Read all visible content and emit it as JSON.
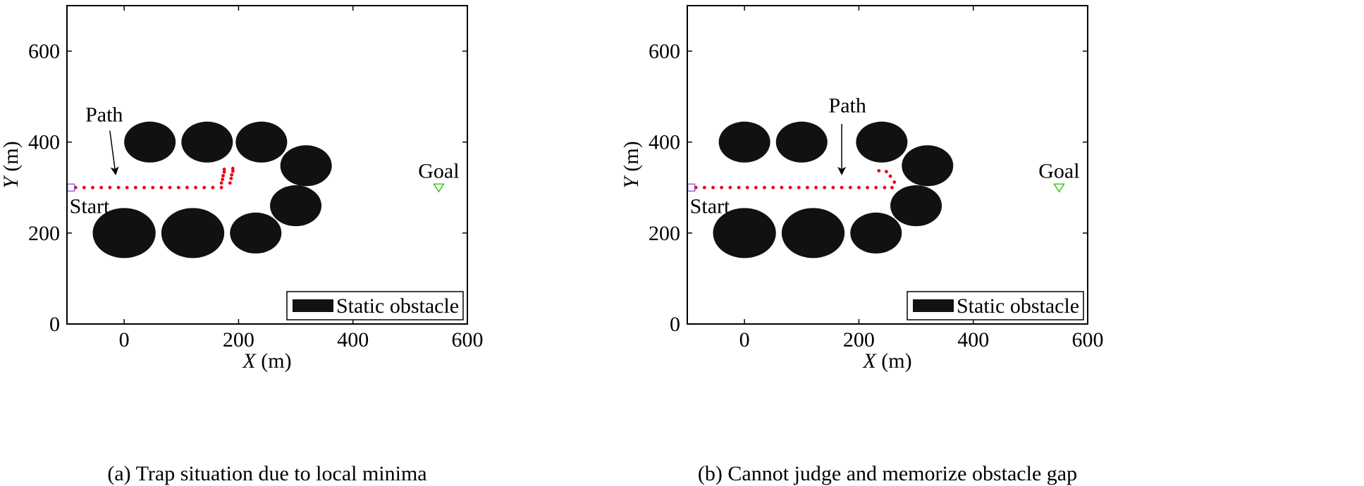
{
  "chart_data": [
    {
      "type": "scatter",
      "caption": "(a) Trap situation due to local minima",
      "xlabel_var": "X",
      "xlabel_unit": " (m)",
      "ylabel_var": "Y",
      "ylabel_unit": " (m)",
      "xlim": [
        -100,
        600
      ],
      "ylim": [
        0,
        700
      ],
      "xticks": [
        0,
        200,
        400,
        600
      ],
      "yticks": [
        0,
        200,
        400,
        600
      ],
      "colors": {
        "path": "#e8000b",
        "start": "#8a4fd8",
        "goal": "#35c20f",
        "obstacle": "#111111"
      },
      "obstacles": [
        {
          "cx": 45,
          "cy": 400,
          "rx": 45,
          "ry": 45
        },
        {
          "cx": 145,
          "cy": 400,
          "rx": 45,
          "ry": 45
        },
        {
          "cx": 240,
          "cy": 400,
          "rx": 45,
          "ry": 45
        },
        {
          "cx": 318,
          "cy": 348,
          "rx": 45,
          "ry": 45
        },
        {
          "cx": 300,
          "cy": 260,
          "rx": 45,
          "ry": 45
        },
        {
          "cx": 0,
          "cy": 200,
          "rx": 55,
          "ry": 55
        },
        {
          "cx": 120,
          "cy": 200,
          "rx": 55,
          "ry": 55
        },
        {
          "cx": 230,
          "cy": 200,
          "rx": 45,
          "ry": 45
        }
      ],
      "path": [
        [
          -85,
          300
        ],
        [
          -70,
          300
        ],
        [
          -55,
          300
        ],
        [
          -40,
          300
        ],
        [
          -25,
          300
        ],
        [
          -10,
          300
        ],
        [
          5,
          300
        ],
        [
          20,
          300
        ],
        [
          35,
          300
        ],
        [
          50,
          300
        ],
        [
          65,
          300
        ],
        [
          80,
          300
        ],
        [
          95,
          300
        ],
        [
          110,
          300
        ],
        [
          125,
          300
        ],
        [
          140,
          300
        ],
        [
          155,
          300
        ],
        [
          170,
          300
        ],
        [
          170,
          310
        ],
        [
          172,
          318
        ],
        [
          173,
          326
        ],
        [
          175,
          334
        ],
        [
          175,
          340
        ],
        [
          185,
          310
        ],
        [
          187,
          320
        ],
        [
          188,
          328
        ],
        [
          190,
          336
        ],
        [
          190,
          342
        ]
      ],
      "start": {
        "x": -93,
        "y": 300,
        "label": "Start"
      },
      "goal": {
        "x": 550,
        "y": 300,
        "label": "Goal"
      },
      "annotation": {
        "text": "Path",
        "label_at": [
          -35,
          445
        ],
        "arrow_from": [
          -25,
          425
        ],
        "arrow_to": [
          -15,
          330
        ]
      },
      "legend": {
        "label": "Static obstacle",
        "position": "bottom-right"
      }
    },
    {
      "type": "scatter",
      "caption": "(b) Cannot judge and memorize obstacle gap",
      "xlabel_var": "X",
      "xlabel_unit": " (m)",
      "ylabel_var": "Y",
      "ylabel_unit": " (m)",
      "xlim": [
        -100,
        600
      ],
      "ylim": [
        0,
        700
      ],
      "xticks": [
        0,
        200,
        400,
        600
      ],
      "yticks": [
        0,
        200,
        400,
        600
      ],
      "colors": {
        "path": "#e8000b",
        "start": "#8a4fd8",
        "goal": "#35c20f",
        "obstacle": "#111111"
      },
      "obstacles": [
        {
          "cx": 0,
          "cy": 400,
          "rx": 45,
          "ry": 45
        },
        {
          "cx": 100,
          "cy": 400,
          "rx": 45,
          "ry": 45
        },
        {
          "cx": 240,
          "cy": 400,
          "rx": 45,
          "ry": 45
        },
        {
          "cx": 320,
          "cy": 348,
          "rx": 45,
          "ry": 45
        },
        {
          "cx": 300,
          "cy": 260,
          "rx": 45,
          "ry": 45
        },
        {
          "cx": 0,
          "cy": 200,
          "rx": 55,
          "ry": 55
        },
        {
          "cx": 120,
          "cy": 200,
          "rx": 55,
          "ry": 55
        },
        {
          "cx": 230,
          "cy": 200,
          "rx": 45,
          "ry": 45
        }
      ],
      "path": [
        [
          -85,
          300
        ],
        [
          -70,
          300
        ],
        [
          -55,
          300
        ],
        [
          -40,
          300
        ],
        [
          -25,
          300
        ],
        [
          -10,
          300
        ],
        [
          5,
          300
        ],
        [
          20,
          300
        ],
        [
          35,
          300
        ],
        [
          50,
          300
        ],
        [
          65,
          300
        ],
        [
          80,
          300
        ],
        [
          95,
          300
        ],
        [
          110,
          300
        ],
        [
          125,
          300
        ],
        [
          140,
          300
        ],
        [
          155,
          300
        ],
        [
          170,
          300
        ],
        [
          185,
          300
        ],
        [
          200,
          300
        ],
        [
          215,
          300
        ],
        [
          230,
          300
        ],
        [
          245,
          300
        ],
        [
          258,
          300
        ],
        [
          262,
          312
        ],
        [
          255,
          325
        ],
        [
          248,
          335
        ],
        [
          235,
          337
        ]
      ],
      "start": {
        "x": -93,
        "y": 300,
        "label": "Start"
      },
      "goal": {
        "x": 550,
        "y": 300,
        "label": "Goal"
      },
      "annotation": {
        "text": "Path",
        "label_at": [
          180,
          465
        ],
        "arrow_from": [
          170,
          440
        ],
        "arrow_to": [
          170,
          330
        ]
      },
      "legend": {
        "label": "Static obstacle",
        "position": "bottom-right"
      }
    }
  ]
}
